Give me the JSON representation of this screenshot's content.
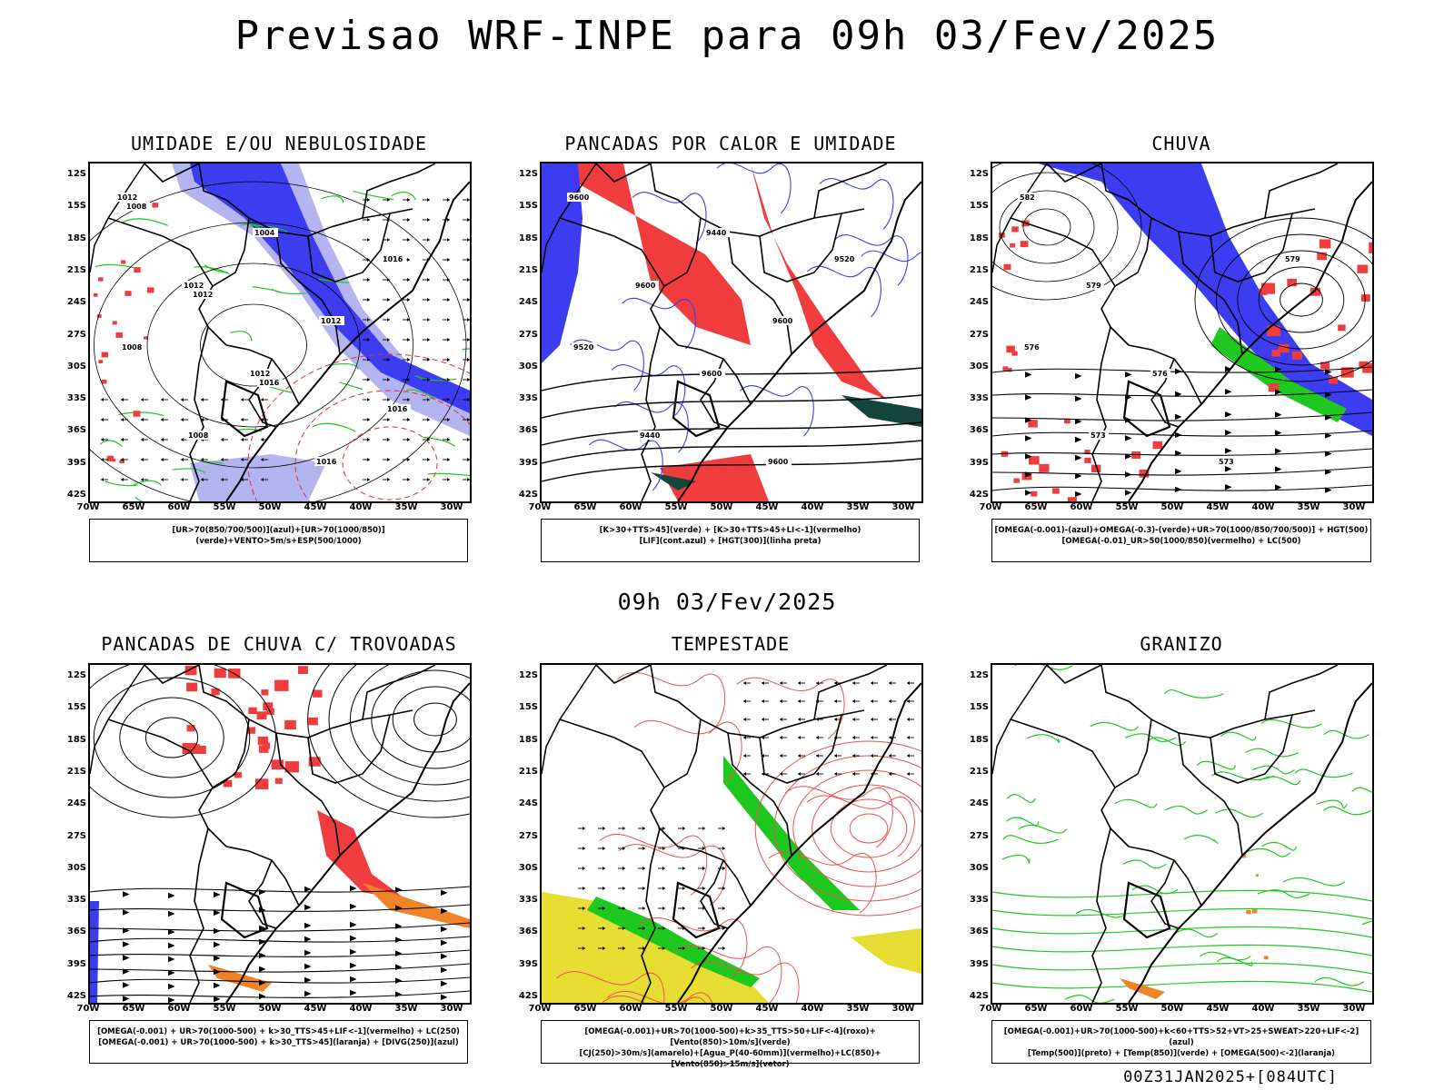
{
  "header": {
    "title": "Previsao WRF-INPE  para 09h 03/Fev/2025"
  },
  "subheader": {
    "title": "09h 03/Fev/2025"
  },
  "footer": {
    "run": "00Z31JAN2025+[084UTC]"
  },
  "axes": {
    "lat": [
      "12S",
      "15S",
      "18S",
      "21S",
      "24S",
      "27S",
      "30S",
      "33S",
      "36S",
      "39S",
      "42S"
    ],
    "lon": [
      "70W",
      "65W",
      "60W",
      "55W",
      "50W",
      "45W",
      "40W",
      "35W",
      "30W"
    ]
  },
  "colors": {
    "blue": "#3c3cf0",
    "lightblue": "#b4b4f0",
    "green": "#1ec81e",
    "red": "#f03c3c",
    "orange": "#f08228",
    "yellow": "#e6dc32",
    "darkteal": "#14463c",
    "black": "#000000"
  },
  "panels": [
    {
      "title": "UMIDADE E/OU NEBULOSIDADE",
      "legend": [
        "[UR>70(850/700/500)](azul)+[UR>70(1000/850)](verde)+VENTO>5m/s+ESP(500/1000)"
      ],
      "contour_labels": [
        "1012",
        "1012",
        "1012",
        "1016",
        "1016",
        "1008",
        "1008",
        "1004",
        "1012",
        "1016",
        "1008",
        "1012",
        "1016"
      ]
    },
    {
      "title": "PANCADAS POR CALOR E UMIDADE",
      "legend": [
        "[K>30+TTS>45](verde) + [K>30+TTS>45+LI<-1](vermelho)",
        "[LIF](cont.azul) + [HGT(300)](linha preta)"
      ],
      "contour_labels": [
        "9600",
        "9600",
        "9600",
        "9600",
        "9520",
        "9520",
        "9440",
        "9440",
        "9600"
      ]
    },
    {
      "title": "CHUVA",
      "legend": [
        "[OMEGA(-0.001)-(azul)+OMEGA(-0.3)-(verde)+UR>70(1000/850/700/500)] + HGT(500)",
        "[OMEGA(-0.01)_UR>50(1000/850)(vermelho) + LC(500)"
      ],
      "contour_labels": [
        "582",
        "579",
        "576",
        "573",
        "579",
        "576",
        "573"
      ]
    },
    {
      "title": "PANCADAS DE CHUVA C/ TROVOADAS",
      "legend": [
        "[OMEGA(-0.001) + UR>70(1000-500) + k>30_TTS>45+LIF<-1](vermelho) + LC(250)",
        "[OMEGA(-0.001) + UR>70(1000-500) + k>30_TTS>45](laranja) + [DIVG(250)](azul)"
      ]
    },
    {
      "title": "TEMPESTADE",
      "legend": [
        "[OMEGA(-0.001)+UR>70(1000-500)+k>35_TTS>50+LIF<-4](roxo)+[Vento(850)>10m/s](verde)",
        "[CJ(250)>30m/s](amarelo)+[Agua_P(40-60mm)](vermelho)+LC(850)+[Vento(850)>15m/s](vetor)"
      ]
    },
    {
      "title": "GRANIZO",
      "legend": [
        "[OMEGA(-0.001)+UR>70(1000-500)+k<60+TTS>52+VT>25+SWEAT>220+LIF<-2](azul)",
        "[Temp(500)](preto) + [Temp(850)](verde) + [OMEGA(500)<-2](laranja)"
      ]
    }
  ]
}
